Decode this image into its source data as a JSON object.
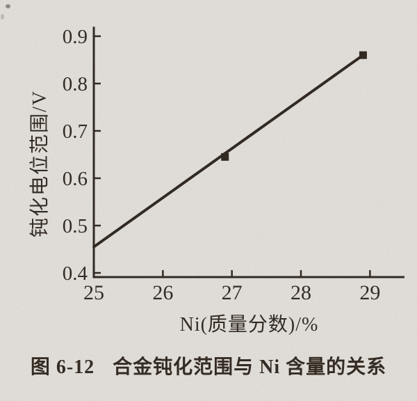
{
  "colors": {
    "paper": "#f6f4f0",
    "ink": "#231c15",
    "text": "#241d16"
  },
  "chart_data": {
    "type": "line",
    "title": "",
    "xlabel": "Ni(质量分数)/%",
    "ylabel": "钝化电位范围/V",
    "xlim": [
      25,
      29.5
    ],
    "ylim": [
      0.4,
      0.92
    ],
    "xticks": [
      "25",
      "26",
      "27",
      "28",
      "29"
    ],
    "yticks": [
      "0.4",
      "0.5",
      "0.6",
      "0.7",
      "0.8",
      "0.9"
    ],
    "grid": false,
    "legend": null,
    "series": [
      {
        "name": "钝化电位范围",
        "marker": "square",
        "color": "#231c15",
        "line_points": [
          [
            25.0,
            0.455
          ],
          [
            28.9,
            0.86
          ]
        ],
        "data_points": [
          [
            26.9,
            0.645
          ],
          [
            28.9,
            0.86
          ]
        ]
      }
    ]
  },
  "caption": {
    "figure_label": "图 6-12",
    "figure_title": "合金钝化范围与 Ni 含量的关系"
  }
}
